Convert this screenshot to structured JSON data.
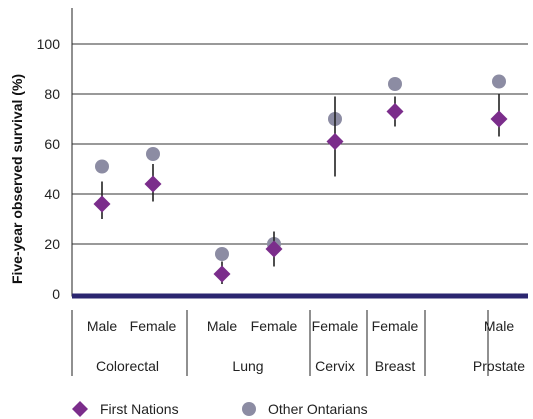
{
  "chart_data": {
    "type": "scatter",
    "title": "",
    "ylabel": "Five-year observed survival (%)",
    "ylim": [
      0,
      100
    ],
    "yticks": [
      0,
      20,
      40,
      60,
      80,
      100
    ],
    "grid": true,
    "legend_position": "bottom",
    "categories": [
      {
        "sex": "Male",
        "site": "Colorectal"
      },
      {
        "sex": "Female",
        "site": "Colorectal"
      },
      {
        "sex": "Male",
        "site": "Lung"
      },
      {
        "sex": "Female",
        "site": "Lung"
      },
      {
        "sex": "Female",
        "site": "Cervix"
      },
      {
        "sex": "Female",
        "site": "Breast"
      },
      {
        "sex": "Male",
        "site": "Prostate"
      }
    ],
    "groups": [
      {
        "label": "Colorectal",
        "span": [
          0,
          1
        ]
      },
      {
        "label": "Lung",
        "span": [
          2,
          3
        ]
      },
      {
        "label": "Cervix",
        "span": [
          4,
          4
        ]
      },
      {
        "label": "Breast",
        "span": [
          5,
          5
        ]
      },
      {
        "label": "Prostate",
        "span": [
          6,
          6
        ]
      }
    ],
    "series": [
      {
        "name": "First Nations",
        "marker": "diamond",
        "color": "#7b2d8b",
        "values": [
          36,
          44,
          8,
          18,
          61,
          73,
          70
        ],
        "ci_low": [
          30,
          37,
          4,
          11,
          47,
          67,
          63
        ],
        "ci_high": [
          45,
          52,
          13,
          25,
          79,
          79,
          80
        ]
      },
      {
        "name": "Other Ontarians",
        "marker": "circle",
        "color": "#8c8ca3",
        "values": [
          51,
          56,
          16,
          20,
          70,
          84,
          85
        ]
      }
    ]
  },
  "colors": {
    "axis_baseline": "#2b2670",
    "grid": "#333333",
    "errorbar": "#222222"
  }
}
